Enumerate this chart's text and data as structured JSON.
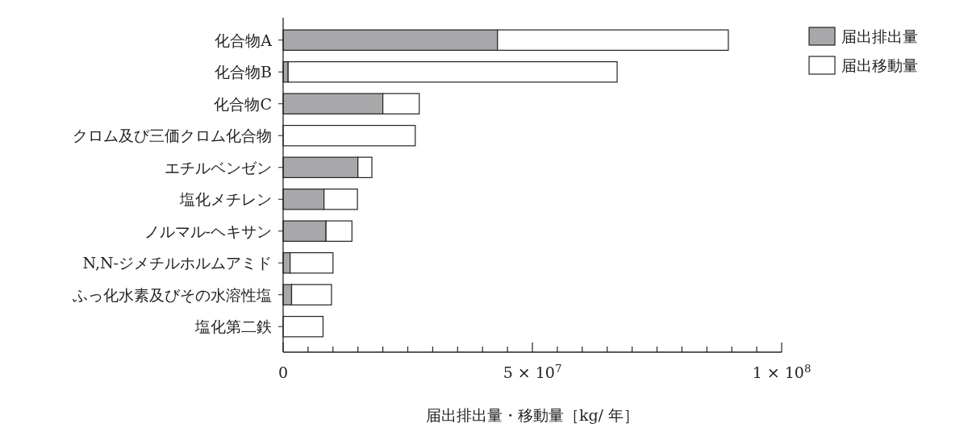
{
  "chart_data": {
    "type": "bar",
    "orientation": "horizontal",
    "stacked": true,
    "categories": [
      "化合物A",
      "化合物B",
      "化合物C",
      "クロム及び三価クロム化合物",
      "エチルベンゼン",
      "塩化メチレン",
      "ノルマル-ヘキサン",
      "N,N-ジメチルホルムアミド",
      "ふっ化水素及びその水溶性塩",
      "塩化第二鉄"
    ],
    "series": [
      {
        "name": "届出排出量",
        "color": "#a8a8aa",
        "values": [
          43000000,
          1000000,
          20000000,
          0,
          15000000,
          8200000,
          8600000,
          1400000,
          1700000,
          0
        ]
      },
      {
        "name": "届出移動量",
        "color": "#ffffff",
        "values": [
          46300000,
          66000000,
          7300000,
          26500000,
          2800000,
          6700000,
          5200000,
          8600000,
          8000000,
          8000000
        ]
      }
    ],
    "xlabel": "届出排出量・移動量［kg/ 年］",
    "xlim": [
      0,
      100000000
    ],
    "xticks": [
      0,
      {
        "value": 5000000,
        "label": null
      },
      {
        "value": 10000000,
        "label": null
      },
      {
        "value": 15000000,
        "label": null
      },
      {
        "value": 20000000,
        "label": null
      },
      {
        "value": 25000000,
        "label": null
      },
      {
        "value": 30000000,
        "label": null
      },
      {
        "value": 35000000,
        "label": null
      },
      {
        "value": 40000000,
        "label": null
      },
      {
        "value": 45000000,
        "label": null
      },
      {
        "value": 50000000,
        "label": "5 × 10$^{7}$"
      },
      {
        "value": 55000000,
        "label": null
      },
      {
        "value": 60000000,
        "label": null
      },
      {
        "value": 65000000,
        "label": null
      },
      {
        "value": 70000000,
        "label": null
      },
      {
        "value": 75000000,
        "label": null
      },
      {
        "value": 80000000,
        "label": null
      },
      {
        "value": 85000000,
        "label": null
      },
      {
        "value": 90000000,
        "label": null
      },
      {
        "value": 95000000,
        "label": null
      },
      {
        "value": 100000000,
        "label": "1 × 10$^{8}$"
      }
    ],
    "legend": "top right",
    "grid": false
  }
}
